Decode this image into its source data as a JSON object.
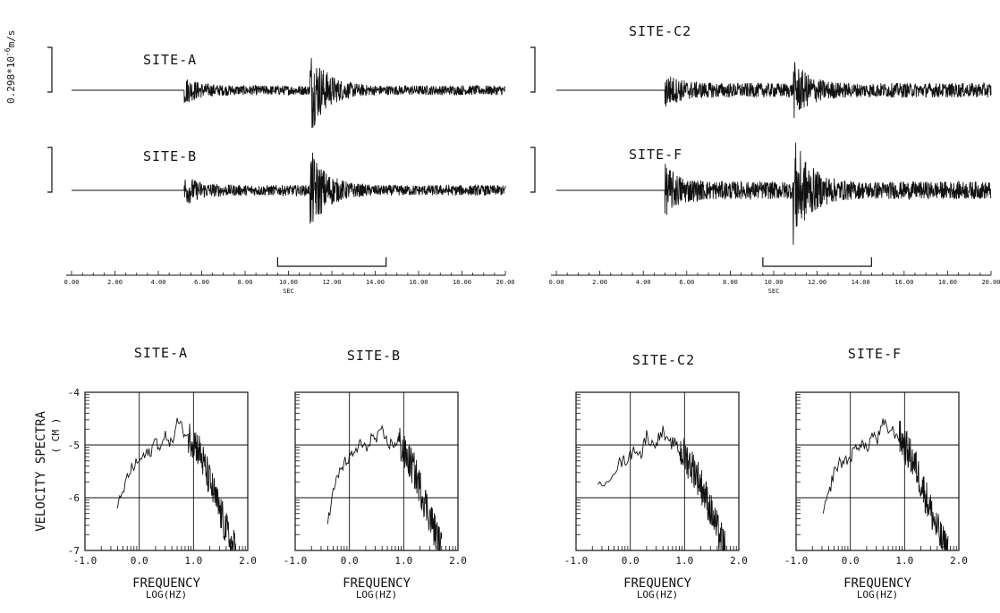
{
  "colors": {
    "ink": "#111111",
    "background": "#ffffff"
  },
  "amplitude_scale_label": "0.298*10",
  "amplitude_scale_exp": "-6",
  "amplitude_scale_unit": "m/s",
  "chart_data": [
    {
      "type": "line",
      "name": "waveforms",
      "xlabel": "SEC",
      "xlim": [
        0,
        20
      ],
      "x_ticks": [
        "0.00",
        "2.00",
        "4.00",
        "6.00",
        "8.00",
        "10.00",
        "12.00",
        "14.00",
        "16.00",
        "18.00",
        "20.00"
      ],
      "window_bracket_sec": [
        9.5,
        14.5
      ],
      "traces": [
        {
          "label": "SITE-A",
          "p_arrival_sec": 5.2,
          "s_arrival_sec": 11.0,
          "p_amp": 0.25,
          "s_amp": 1.0,
          "coda_amp": 0.12
        },
        {
          "label": "SITE-B",
          "p_arrival_sec": 5.2,
          "s_arrival_sec": 11.0,
          "p_amp": 0.28,
          "s_amp": 0.95,
          "coda_amp": 0.13
        },
        {
          "label": "SITE-C2",
          "p_arrival_sec": 5.0,
          "s_arrival_sec": 10.9,
          "p_amp": 0.3,
          "s_amp": 0.6,
          "coda_amp": 0.18
        },
        {
          "label": "SITE-F",
          "p_arrival_sec": 5.0,
          "s_arrival_sec": 10.9,
          "p_amp": 0.45,
          "s_amp": 1.2,
          "coda_amp": 0.22
        }
      ]
    },
    {
      "type": "line",
      "name": "velocity-spectra",
      "xlabel": "FREQUENCY",
      "xlabel_sub": "LOG(HZ)",
      "ylabel": "VELOCITY SPECTRA",
      "ylabel_sub": "( CM )",
      "xlim": [
        -1.0,
        2.0
      ],
      "ylim": [
        -7,
        -4
      ],
      "x_ticks": [
        "-1.0",
        "0.0",
        "1.0",
        "2.0"
      ],
      "y_ticks": [
        "-4",
        "-5",
        "-6",
        "-7"
      ],
      "grid": true,
      "spectra": [
        {
          "label": "SITE-A",
          "points": [
            [
              -0.4,
              -6.2
            ],
            [
              -0.3,
              -5.9
            ],
            [
              -0.2,
              -5.55
            ],
            [
              -0.1,
              -5.4
            ],
            [
              0.0,
              -5.3
            ],
            [
              0.1,
              -5.2
            ],
            [
              0.2,
              -5.15
            ],
            [
              0.3,
              -4.9
            ],
            [
              0.4,
              -5.05
            ],
            [
              0.5,
              -4.8
            ],
            [
              0.6,
              -5.0
            ],
            [
              0.7,
              -4.55
            ],
            [
              0.8,
              -4.7
            ],
            [
              0.9,
              -4.85
            ],
            [
              1.0,
              -4.9
            ],
            [
              1.1,
              -5.1
            ],
            [
              1.2,
              -5.4
            ],
            [
              1.3,
              -5.7
            ],
            [
              1.4,
              -6.0
            ],
            [
              1.5,
              -6.3
            ],
            [
              1.6,
              -6.6
            ],
            [
              1.7,
              -6.9
            ],
            [
              1.8,
              -7.0
            ]
          ]
        },
        {
          "label": "SITE-B",
          "points": [
            [
              -0.4,
              -6.5
            ],
            [
              -0.3,
              -5.9
            ],
            [
              -0.2,
              -5.55
            ],
            [
              -0.1,
              -5.35
            ],
            [
              0.0,
              -5.25
            ],
            [
              0.1,
              -5.15
            ],
            [
              0.2,
              -4.95
            ],
            [
              0.3,
              -5.1
            ],
            [
              0.4,
              -4.85
            ],
            [
              0.5,
              -4.9
            ],
            [
              0.6,
              -4.75
            ],
            [
              0.7,
              -4.95
            ],
            [
              0.8,
              -5.0
            ],
            [
              0.9,
              -4.9
            ],
            [
              1.0,
              -5.15
            ],
            [
              1.1,
              -5.3
            ],
            [
              1.2,
              -5.5
            ],
            [
              1.3,
              -5.8
            ],
            [
              1.4,
              -6.1
            ],
            [
              1.5,
              -6.4
            ],
            [
              1.6,
              -6.7
            ],
            [
              1.7,
              -7.0
            ]
          ]
        },
        {
          "label": "SITE-C2",
          "points": [
            [
              -0.6,
              -5.75
            ],
            [
              -0.4,
              -5.6
            ],
            [
              -0.2,
              -5.35
            ],
            [
              -0.1,
              -5.3
            ],
            [
              0.0,
              -5.2
            ],
            [
              0.1,
              -5.05
            ],
            [
              0.2,
              -5.2
            ],
            [
              0.3,
              -4.8
            ],
            [
              0.4,
              -5.0
            ],
            [
              0.5,
              -4.9
            ],
            [
              0.6,
              -4.75
            ],
            [
              0.7,
              -5.0
            ],
            [
              0.8,
              -4.95
            ],
            [
              0.9,
              -5.1
            ],
            [
              1.0,
              -5.2
            ],
            [
              1.1,
              -5.35
            ],
            [
              1.2,
              -5.5
            ],
            [
              1.3,
              -5.75
            ],
            [
              1.4,
              -6.0
            ],
            [
              1.5,
              -6.3
            ],
            [
              1.6,
              -6.6
            ],
            [
              1.7,
              -6.85
            ],
            [
              1.75,
              -7.0
            ]
          ]
        },
        {
          "label": "SITE-F",
          "points": [
            [
              -0.5,
              -6.3
            ],
            [
              -0.4,
              -5.95
            ],
            [
              -0.3,
              -5.5
            ],
            [
              -0.2,
              -5.35
            ],
            [
              -0.1,
              -5.3
            ],
            [
              0.0,
              -5.25
            ],
            [
              0.1,
              -5.05
            ],
            [
              0.2,
              -4.95
            ],
            [
              0.3,
              -5.1
            ],
            [
              0.4,
              -4.8
            ],
            [
              0.5,
              -4.9
            ],
            [
              0.6,
              -4.6
            ],
            [
              0.7,
              -4.7
            ],
            [
              0.8,
              -4.75
            ],
            [
              0.9,
              -4.85
            ],
            [
              1.0,
              -5.0
            ],
            [
              1.1,
              -5.2
            ],
            [
              1.2,
              -5.4
            ],
            [
              1.3,
              -5.7
            ],
            [
              1.4,
              -6.0
            ],
            [
              1.5,
              -6.3
            ],
            [
              1.6,
              -6.6
            ],
            [
              1.7,
              -6.85
            ],
            [
              1.8,
              -7.0
            ]
          ]
        }
      ]
    }
  ]
}
